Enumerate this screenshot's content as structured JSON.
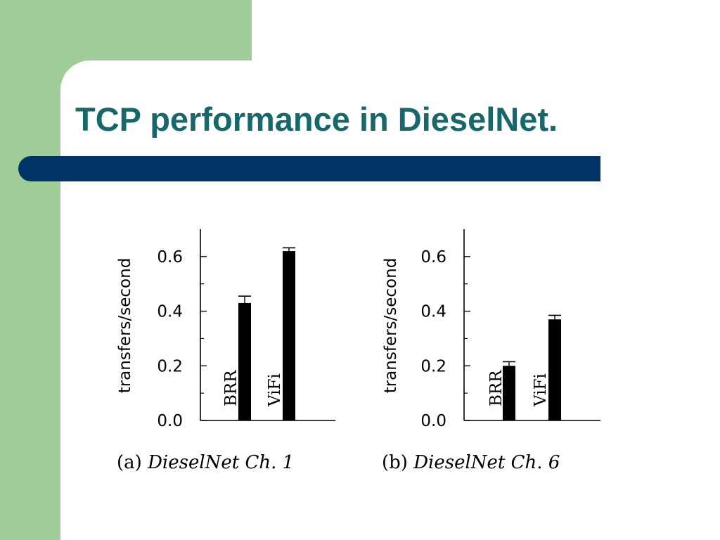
{
  "slide": {
    "title": "TCP performance in DieselNet.",
    "colors": {
      "accent_green": "#9fcc97",
      "title_teal": "#17686a",
      "bar_navy": "#003366"
    }
  },
  "chart_data": [
    {
      "type": "bar",
      "caption_prefix": "(a)",
      "caption": "DieselNet Ch. 1",
      "ylabel": "transfers/second",
      "ylim": [
        0,
        0.7
      ],
      "yticks": [
        "0.0",
        "0.2",
        "0.4",
        "0.6"
      ],
      "categories": [
        "BRR",
        "ViFi"
      ],
      "values": [
        0.43,
        0.62
      ],
      "errors": [
        0.025,
        0.012
      ]
    },
    {
      "type": "bar",
      "caption_prefix": "(b)",
      "caption": "DieselNet Ch. 6",
      "ylabel": "transfers/second",
      "ylim": [
        0,
        0.7
      ],
      "yticks": [
        "0.0",
        "0.2",
        "0.4",
        "0.6"
      ],
      "categories": [
        "BRR",
        "ViFi"
      ],
      "values": [
        0.2,
        0.37
      ],
      "errors": [
        0.015,
        0.015
      ]
    }
  ]
}
